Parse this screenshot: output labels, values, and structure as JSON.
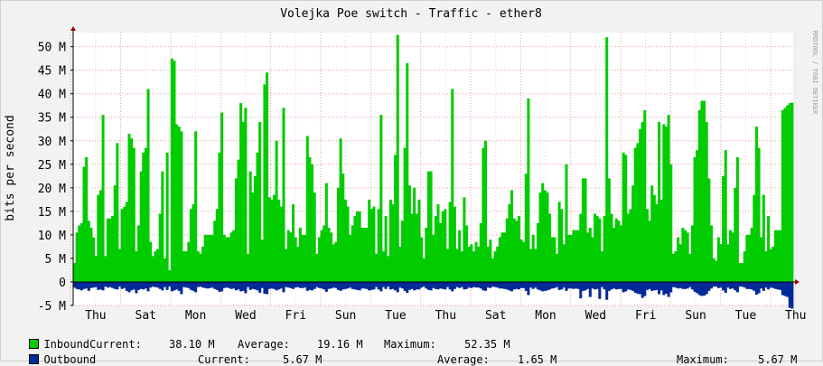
{
  "chart_data": {
    "type": "area",
    "title": "Volejka Poe switch - Traffic - ether8",
    "ylabel": "bits per second",
    "watermark": "RRDTOOL / TOBI OETIKER",
    "ylim": [
      -5000000,
      53000000
    ],
    "ytick_values": [
      -5000000,
      0,
      5000000,
      10000000,
      15000000,
      20000000,
      25000000,
      30000000,
      35000000,
      40000000,
      45000000,
      50000000
    ],
    "ytick_labels": [
      "-5 M",
      "0",
      "5 M",
      "10 M",
      "15 M",
      "20 M",
      "25 M",
      "30 M",
      "35 M",
      "40 M",
      "45 M",
      "50 M"
    ],
    "xtick_labels": [
      "Thu",
      "Sat",
      "Mon",
      "Wed",
      "Fri",
      "Sun",
      "Tue",
      "Thu",
      "Sat",
      "Mon",
      "Wed",
      "Fri",
      "Sun",
      "Tue",
      "Thu"
    ],
    "grid": true,
    "legend_position": "bottom",
    "series": [
      {
        "name": "Inbound",
        "color": "#00cc00",
        "current": "38.10 M",
        "average": "19.16 M",
        "maximum": "52.35 M",
        "values_mbps": [
          4,
          10.5,
          12,
          12.5,
          24.5,
          26.5,
          13,
          11.5,
          9.5,
          5.5,
          18.5,
          19.5,
          35.5,
          5.5,
          13.5,
          13.5,
          14,
          20.5,
          29.5,
          7,
          15.5,
          16,
          17,
          31.5,
          30.5,
          28.5,
          6.5,
          12,
          23.5,
          27.5,
          28.5,
          41,
          8.5,
          5.5,
          6.5,
          7,
          14.5,
          23.5,
          5,
          27.5,
          2.5,
          47.5,
          47,
          33.5,
          33,
          32,
          6.5,
          6.5,
          8.5,
          15.5,
          16.5,
          32,
          6.5,
          6,
          7.5,
          10,
          10,
          10,
          10,
          13,
          15.5,
          27.5,
          36,
          10,
          9.5,
          9.5,
          10.5,
          11,
          22,
          26,
          38,
          34,
          37,
          6,
          23.5,
          19,
          22.5,
          27.5,
          34,
          9,
          42,
          44.5,
          18,
          17.5,
          18.5,
          30,
          17.5,
          16,
          37,
          7,
          11,
          10.5,
          16.5,
          9.5,
          7.5,
          11.5,
          10,
          10,
          31,
          26.5,
          25,
          19,
          6,
          9.5,
          11,
          12,
          21,
          11.5,
          10.5,
          8,
          8.5,
          20,
          30.5,
          23,
          17.5,
          16,
          10,
          12,
          14,
          15,
          15,
          11.5,
          11.5,
          11.5,
          17.5,
          15.5,
          16,
          6,
          15.5,
          35.5,
          6.5,
          14,
          5.5,
          17.5,
          16.5,
          27,
          52.5,
          7.5,
          13,
          28.5,
          46.5,
          20.5,
          14.5,
          20,
          14.5,
          17.5,
          9.5,
          5,
          11.5,
          23.5,
          23.5,
          10,
          14,
          16.5,
          12.5,
          15,
          15.5,
          7,
          17,
          41,
          16,
          7,
          11,
          6.5,
          18,
          12,
          7.5,
          8,
          6.5,
          8.5,
          7.5,
          12.5,
          28.5,
          30,
          7.5,
          9,
          5,
          6.5,
          7.5,
          9.5,
          10.5,
          10.5,
          13.5,
          16.5,
          19.5,
          13.5,
          13,
          14,
          9,
          8.5,
          23,
          39,
          7,
          10,
          7,
          12.5,
          19,
          21,
          19.5,
          19,
          14.5,
          9.5,
          9.5,
          6,
          17,
          15.5,
          8,
          25,
          10,
          10,
          11,
          11,
          11,
          14.5,
          22,
          22,
          10.5,
          11.5,
          9.5,
          14.5,
          14,
          13.5,
          6.5,
          14,
          52,
          22,
          14.5,
          11.5,
          13.5,
          13,
          12,
          27.5,
          27,
          14.5,
          15.5,
          20.5,
          28.5,
          29.5,
          32.5,
          34,
          36.5,
          15.5,
          13,
          20.5,
          18.5,
          16.5,
          34,
          17.5,
          33.5,
          33,
          35.5,
          25,
          6,
          6.5,
          9.5,
          8,
          11.5,
          11,
          10.5,
          6,
          12,
          26.5,
          28,
          36.5,
          38.5,
          38.5,
          34,
          22,
          12,
          5,
          4.5,
          9.5,
          8,
          22.5,
          28,
          8,
          11,
          10.5,
          20,
          26.5,
          4,
          4,
          6.5,
          10,
          10,
          11.5,
          18.5,
          33,
          28.5,
          9.5,
          18.5,
          6.5,
          14,
          7,
          7.5,
          11,
          11,
          11,
          36.5,
          37,
          37.5,
          38,
          38.1
        ]
      },
      {
        "name": "Outbound",
        "color": "#002a97",
        "current": "5.67 M",
        "average": "1.65 M",
        "maximum": "5.67 M",
        "values_mbps": [
          -1.2,
          -1.5,
          -1.6,
          -1.8,
          -1.5,
          -1.4,
          -1.9,
          -1.3,
          -1.2,
          -1.1,
          -1.7,
          -1.6,
          -1.8,
          -1.0,
          -1.2,
          -1.1,
          -1.3,
          -1.5,
          -1.6,
          -1.0,
          -1.5,
          -1.3,
          -1.9,
          -2.2,
          -1.8,
          -1.6,
          -2.4,
          -1.7,
          -1.5,
          -1.6,
          -1.4,
          -2.0,
          -1.2,
          -1.0,
          -1.1,
          -1.2,
          -1.5,
          -1.8,
          -1.1,
          -1.7,
          -1.0,
          -2.0,
          -1.8,
          -1.6,
          -1.9,
          -2.6,
          -1.1,
          -1.2,
          -1.3,
          -1.7,
          -1.9,
          -2.2,
          -1.1,
          -1.0,
          -1.2,
          -1.3,
          -1.4,
          -1.3,
          -1.2,
          -1.5,
          -1.7,
          -2.1,
          -2.0,
          -1.3,
          -1.2,
          -1.3,
          -1.5,
          -1.4,
          -1.8,
          -1.6,
          -2.0,
          -1.9,
          -2.4,
          -1.1,
          -1.7,
          -1.5,
          -1.6,
          -1.8,
          -2.3,
          -1.3,
          -2.5,
          -2.6,
          -1.5,
          -1.4,
          -1.5,
          -1.8,
          -1.6,
          -1.4,
          -2.2,
          -1.1,
          -1.2,
          -1.3,
          -1.5,
          -1.2,
          -1.1,
          -1.3,
          -1.3,
          -1.2,
          -1.9,
          -1.7,
          -1.8,
          -1.5,
          -1.1,
          -1.3,
          -1.4,
          -1.6,
          -2.1,
          -1.5,
          -1.4,
          -1.2,
          -1.3,
          -1.7,
          -1.9,
          -1.6,
          -1.5,
          -1.4,
          -1.2,
          -1.5,
          -1.6,
          -1.7,
          -1.8,
          -1.4,
          -1.4,
          -1.5,
          -1.8,
          -1.7,
          -1.6,
          -1.1,
          -1.6,
          -2.0,
          -1.1,
          -1.5,
          -1.0,
          -1.6,
          -1.5,
          -1.8,
          -2.2,
          -1.2,
          -1.4,
          -1.9,
          -2.3,
          -1.7,
          -1.5,
          -1.8,
          -1.6,
          -1.6,
          -1.2,
          -1.0,
          -1.4,
          -1.7,
          -1.8,
          -1.3,
          -1.5,
          -1.6,
          -1.4,
          -1.5,
          -1.6,
          -1.1,
          -1.6,
          -2.0,
          -1.5,
          -1.1,
          -1.3,
          -1.1,
          -1.6,
          -1.5,
          -1.2,
          -1.3,
          -1.1,
          -1.2,
          -1.2,
          -1.4,
          -1.8,
          -1.9,
          -1.2,
          -1.3,
          -1.0,
          -1.1,
          -1.2,
          -1.4,
          -1.4,
          -1.5,
          -1.6,
          -1.8,
          -2.0,
          -1.6,
          -1.5,
          -1.6,
          -1.3,
          -1.3,
          -1.9,
          -2.8,
          -1.2,
          -1.5,
          -1.2,
          -1.6,
          -1.8,
          -2.0,
          -1.9,
          -1.8,
          -1.6,
          -1.4,
          -1.3,
          -1.1,
          -1.7,
          -1.6,
          -1.2,
          -1.9,
          -1.4,
          -1.4,
          -1.5,
          -1.4,
          -1.5,
          -3.5,
          -1.9,
          -1.8,
          -1.5,
          -3.2,
          -1.4,
          -1.6,
          -1.5,
          -3.6,
          -1.1,
          -1.6,
          -3.8,
          -1.9,
          -1.6,
          -1.4,
          -1.6,
          -1.5,
          -1.5,
          -2.2,
          -2.0,
          -1.6,
          -1.7,
          -1.9,
          -2.3,
          -2.5,
          -2.6,
          -3.4,
          -3.0,
          -1.7,
          -1.5,
          -1.9,
          -1.8,
          -1.7,
          -2.6,
          -1.8,
          -2.8,
          -2.5,
          -3.2,
          -2.2,
          -1.1,
          -1.2,
          -1.4,
          -1.3,
          -1.5,
          -1.5,
          -1.4,
          -1.1,
          -1.6,
          -2.1,
          -2.4,
          -2.8,
          -3.0,
          -2.9,
          -2.6,
          -1.9,
          -1.4,
          -1.0,
          -1.0,
          -1.3,
          -1.2,
          -1.8,
          -2.3,
          -1.2,
          -1.5,
          -1.4,
          -1.8,
          -2.2,
          -1.0,
          -1.0,
          -1.2,
          -1.5,
          -1.5,
          -1.6,
          -1.9,
          -2.7,
          -2.4,
          -1.4,
          -1.9,
          -1.2,
          -1.6,
          -1.2,
          -1.3,
          -1.5,
          -1.6,
          -1.7,
          -2.8,
          -3.0,
          -3.2,
          -5.5,
          -5.67
        ]
      }
    ]
  },
  "legend": {
    "current_label": "Current:",
    "average_label": "Average:",
    "maximum_label": "Maximum:"
  }
}
